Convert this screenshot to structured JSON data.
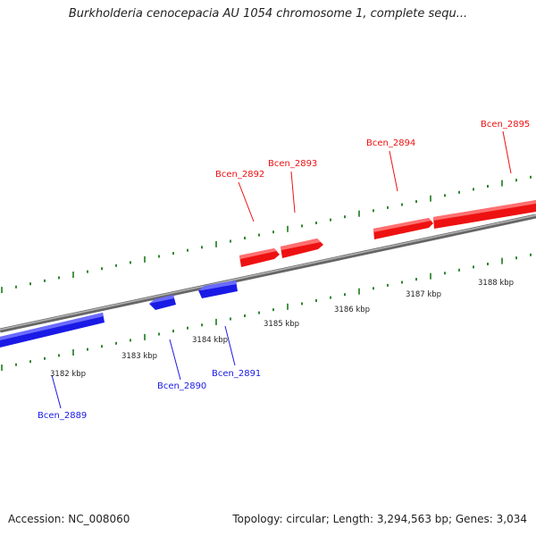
{
  "title": "Burkholderia cenocepacia AU 1054 chromosome 1, complete sequ...",
  "footer": {
    "accession": "Accession: NC_008060",
    "summary": "Topology: circular; Length: 3,294,563 bp; Genes: 3,034"
  },
  "colors": {
    "forward": "#ee1111",
    "reverse": "#1a1ae6",
    "ticks": "#1a7a1a",
    "backbone": "#888888"
  },
  "scale_labels": [
    "3182 kbp",
    "3183 kbp",
    "3184 kbp",
    "3185 kbp",
    "3186 kbp",
    "3187 kbp",
    "3188 kbp"
  ],
  "genes": [
    {
      "name": "Bcen_2889",
      "strand": "reverse"
    },
    {
      "name": "Bcen_2890",
      "strand": "reverse"
    },
    {
      "name": "Bcen_2891",
      "strand": "reverse"
    },
    {
      "name": "Bcen_2892",
      "strand": "forward"
    },
    {
      "name": "Bcen_2893",
      "strand": "forward"
    },
    {
      "name": "Bcen_2894",
      "strand": "forward"
    },
    {
      "name": "Bcen_2895",
      "strand": "forward"
    }
  ]
}
